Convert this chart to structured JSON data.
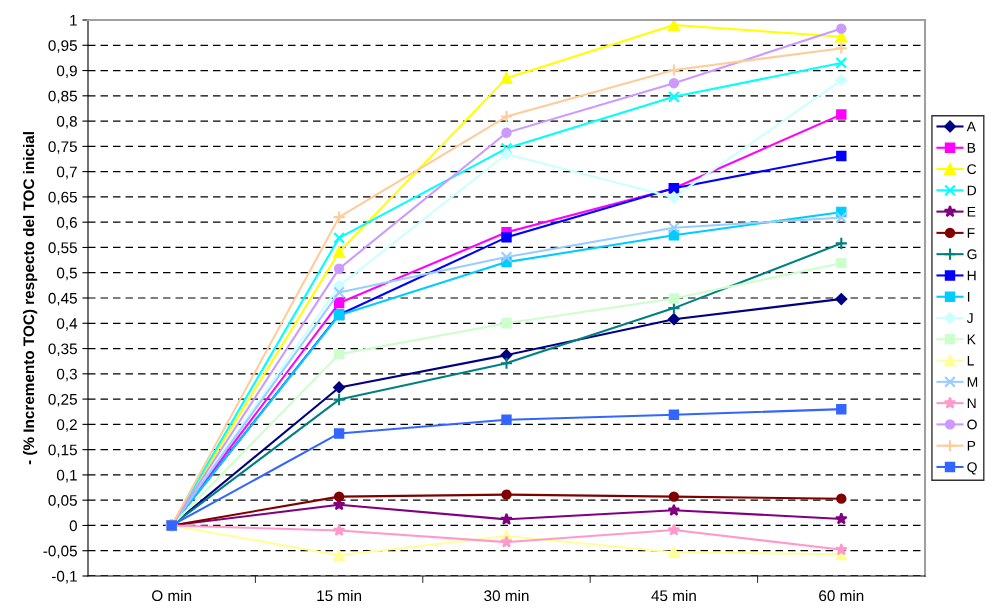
{
  "chart_data": {
    "type": "line",
    "ylabel": "- (% Incremento TOC) respecto del TOC inicial",
    "categories": [
      "O min",
      "15 min",
      "30 min",
      "45 min",
      "60 min"
    ],
    "ylim": [
      -0.1,
      1
    ],
    "yticks": [
      {
        "value": -0.1,
        "label": "-0,1"
      },
      {
        "value": -0.05,
        "label": "-0,05"
      },
      0,
      {
        "value": 0.05,
        "label": "0,05"
      },
      {
        "value": 0.1,
        "label": "0,1"
      },
      {
        "value": 0.15,
        "label": "0,15"
      },
      {
        "value": 0.2,
        "label": "0,2"
      },
      {
        "value": 0.25,
        "label": "0,25"
      },
      {
        "value": 0.3,
        "label": "0,3"
      },
      {
        "value": 0.35,
        "label": "0,35"
      },
      {
        "value": 0.4,
        "label": "0,4"
      },
      {
        "value": 0.45,
        "label": "0,45"
      },
      {
        "value": 0.5,
        "label": "0,5"
      },
      {
        "value": 0.55,
        "label": "0,55"
      },
      {
        "value": 0.6,
        "label": "0,6"
      },
      {
        "value": 0.65,
        "label": "0,65"
      },
      {
        "value": 0.7,
        "label": "0,7"
      },
      {
        "value": 0.75,
        "label": "0,75"
      },
      {
        "value": 0.8,
        "label": "0,8"
      },
      {
        "value": 0.85,
        "label": "0,85"
      },
      {
        "value": 0.9,
        "label": "0,9"
      },
      {
        "value": 0.95,
        "label": "0,95"
      },
      1
    ],
    "grid": "y",
    "legend": "right",
    "line_style": "solid",
    "series": [
      {
        "name": "A",
        "color": "#000080",
        "marker": "diamond",
        "values": [
          0,
          0.273,
          0.337,
          0.408,
          0.448
        ]
      },
      {
        "name": "B",
        "color": "#ff00ff",
        "marker": "square",
        "values": [
          0,
          0.44,
          0.58,
          0.667,
          0.813
        ]
      },
      {
        "name": "C",
        "color": "#ffff00",
        "marker": "triangle",
        "values": [
          0,
          0.541,
          0.885,
          0.99,
          0.967
        ]
      },
      {
        "name": "D",
        "color": "#00ffff",
        "marker": "cross",
        "values": [
          0,
          0.569,
          0.746,
          0.848,
          0.915
        ]
      },
      {
        "name": "E",
        "color": "#800080",
        "marker": "star",
        "values": [
          0,
          0.041,
          0.012,
          0.03,
          0.013
        ]
      },
      {
        "name": "F",
        "color": "#800000",
        "marker": "circle",
        "values": [
          0,
          0.057,
          0.061,
          0.057,
          0.053
        ]
      },
      {
        "name": "G",
        "color": "#008080",
        "marker": "plus",
        "values": [
          0,
          0.249,
          0.321,
          0.43,
          0.558
        ]
      },
      {
        "name": "H",
        "color": "#0000ff",
        "marker": "square",
        "values": [
          0,
          0.417,
          0.57,
          0.667,
          0.731
        ]
      },
      {
        "name": "I",
        "color": "#00ccff",
        "marker": "square",
        "values": [
          0,
          0.416,
          0.521,
          0.574,
          0.62
        ]
      },
      {
        "name": "J",
        "color": "#ccffff",
        "marker": "diamond",
        "values": [
          0,
          0.474,
          0.735,
          0.649,
          0.881
        ]
      },
      {
        "name": "K",
        "color": "#ccffcc",
        "marker": "square",
        "values": [
          0,
          0.339,
          0.4,
          0.449,
          0.519
        ]
      },
      {
        "name": "L",
        "color": "#ffff99",
        "marker": "triangle",
        "values": [
          0,
          -0.059,
          -0.021,
          -0.053,
          -0.057
        ]
      },
      {
        "name": "M",
        "color": "#99ccff",
        "marker": "cross",
        "values": [
          0,
          0.461,
          0.531,
          0.589,
          0.609
        ]
      },
      {
        "name": "N",
        "color": "#ff99cc",
        "marker": "star",
        "values": [
          0,
          -0.01,
          -0.033,
          -0.009,
          -0.048
        ]
      },
      {
        "name": "O",
        "color": "#cc99ff",
        "marker": "circle",
        "values": [
          0,
          0.508,
          0.777,
          0.875,
          0.983
        ]
      },
      {
        "name": "P",
        "color": "#ffcc99",
        "marker": "plus",
        "values": [
          0,
          0.61,
          0.809,
          0.901,
          0.944
        ]
      },
      {
        "name": "Q",
        "color": "#3366ff",
        "marker": "square",
        "values": [
          0,
          0.182,
          0.209,
          0.219,
          0.23
        ]
      }
    ]
  }
}
